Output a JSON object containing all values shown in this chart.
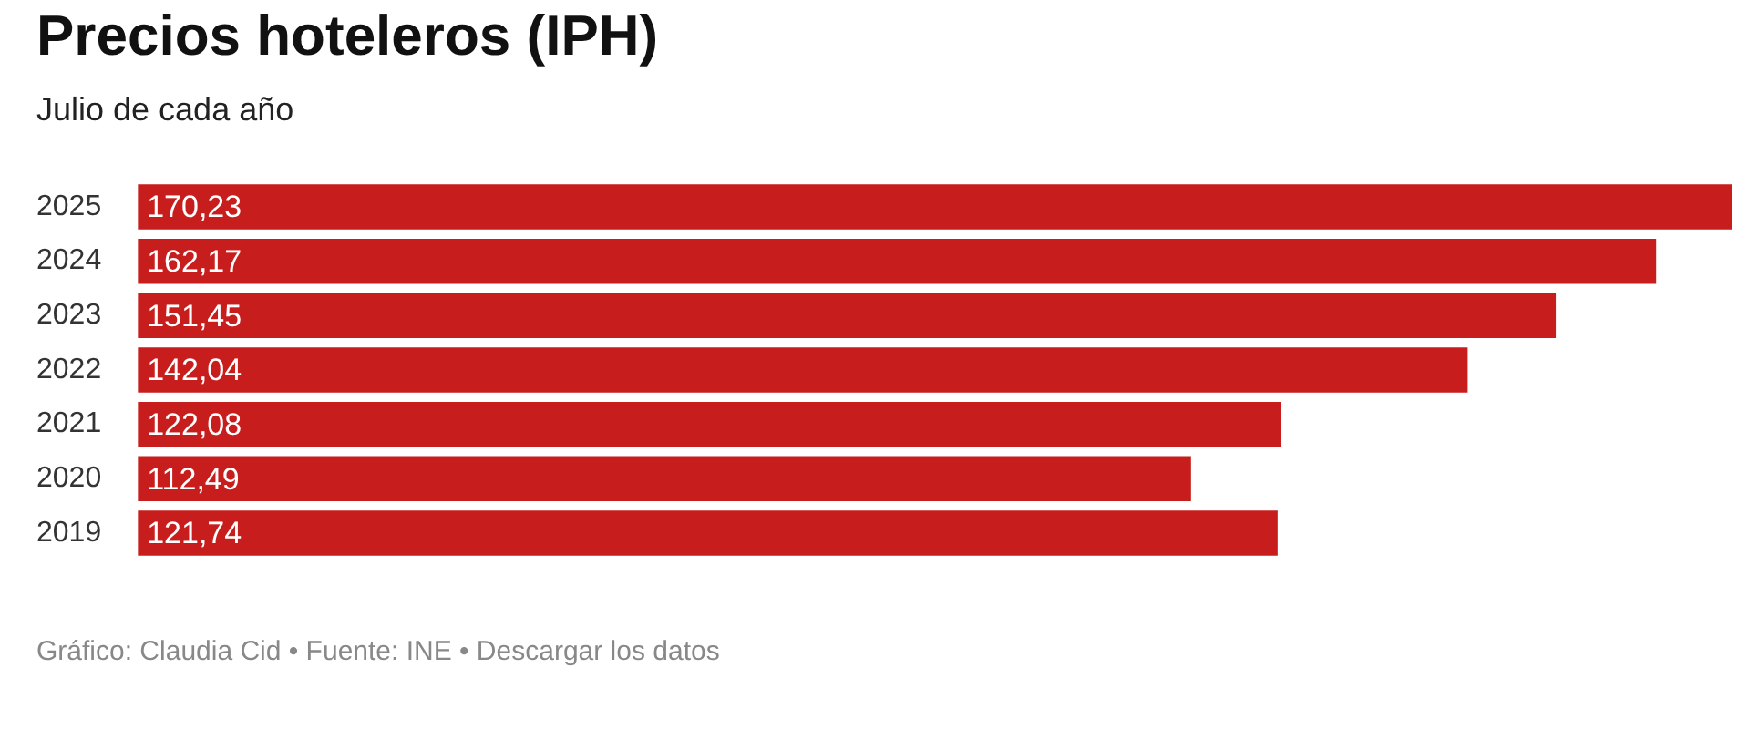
{
  "chart_data": {
    "type": "bar",
    "orientation": "horizontal",
    "title": "Precios hoteleros (IPH)",
    "subtitle": "Julio de cada año",
    "categories": [
      "2025",
      "2024",
      "2023",
      "2022",
      "2021",
      "2020",
      "2019"
    ],
    "values": [
      170.23,
      162.17,
      151.45,
      142.04,
      122.08,
      112.49,
      121.74
    ],
    "value_labels": [
      "170,23",
      "162,17",
      "151,45",
      "142,04",
      "122,08",
      "112,49",
      "121,74"
    ],
    "color": "#c71e1d",
    "tick_labels": "y",
    "annotations": [
      "Gráfico: Claudia Cid • Fuente: INE • Descargar los datos"
    ]
  }
}
